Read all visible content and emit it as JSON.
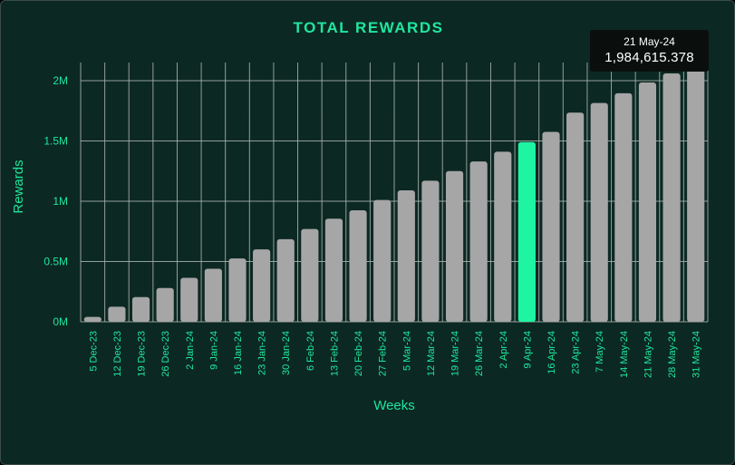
{
  "chart_data": {
    "type": "bar",
    "title": "TOTAL REWARDS",
    "xlabel": "Weeks",
    "ylabel": "Rewards",
    "ylim": [
      0,
      2150000
    ],
    "yticks": [
      0,
      500000,
      1000000,
      1500000,
      2000000
    ],
    "ytick_labels": [
      "0M",
      "0.5M",
      "1M",
      "1.5M",
      "2M"
    ],
    "grid": true,
    "categories": [
      "5 Dec-23",
      "12 Dec-23",
      "19 Dec-23",
      "26 Dec-23",
      "2 Jan-24",
      "9 Jan-24",
      "16 Jan-24",
      "23 Jan-24",
      "30 Jan-24",
      "6 Feb-24",
      "13 Feb-24",
      "20 Feb-24",
      "27 Feb-24",
      "5 Mar-24",
      "12 Mar-24",
      "19 Mar-24",
      "26 Mar-24",
      "2 Apr-24",
      "9 Apr-24",
      "16 Apr-24",
      "23 Apr-24",
      "7 May-24",
      "14 May-24",
      "21 May-24",
      "28 May-24",
      "31 May-24"
    ],
    "values": [
      40000,
      125000,
      205000,
      280000,
      365000,
      440000,
      525000,
      600000,
      685000,
      770000,
      855000,
      925000,
      1010000,
      1090000,
      1170000,
      1250000,
      1330000,
      1410000,
      1490000,
      1575000,
      1735000,
      1815000,
      1895000,
      1984615.378,
      2060000,
      2140000
    ],
    "highlight_category": "9 Apr-24",
    "colors": {
      "bar": "#a6a6a6",
      "highlight": "#1ef5a3",
      "grid": "#aab4b0",
      "text": "#1ee79f",
      "background": "#0c2822",
      "tooltip_bg": "#0a0f0e"
    },
    "tooltip": {
      "category": "21 May-24",
      "label": "21 May-24",
      "value": "1,984,615.378"
    }
  }
}
